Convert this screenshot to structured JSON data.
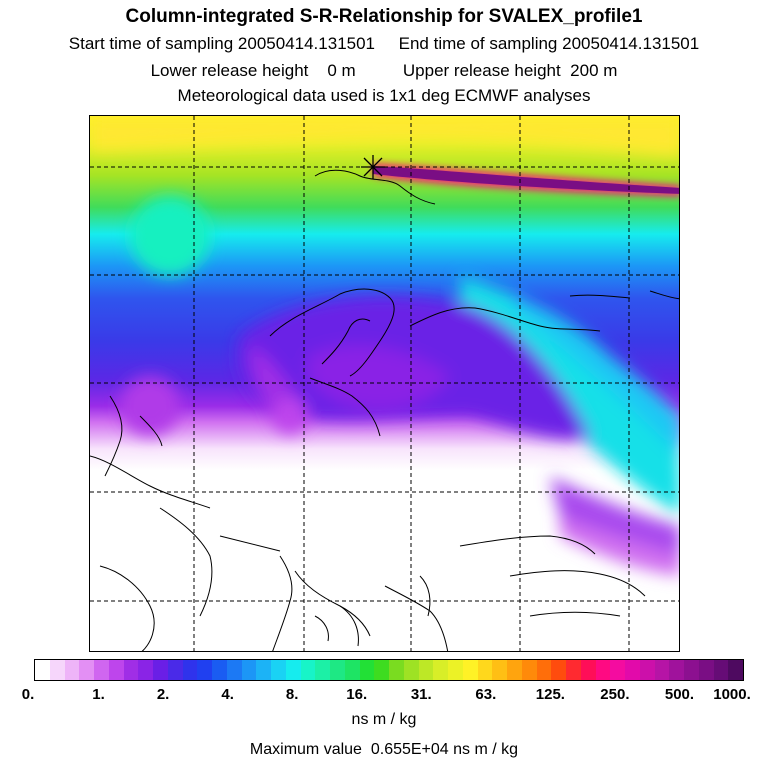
{
  "header": {
    "title": "Column-integrated S-R-Relationship for SVALEX_profile1",
    "start_label": "Start time of sampling",
    "start_value": "20050414.131501",
    "end_label": "End time of sampling",
    "end_value": "20050414.131501",
    "lower_label": "Lower release height",
    "lower_value": "0 m",
    "upper_label": "Upper release height",
    "upper_value": "200 m",
    "met_text": "Meteorological data used is 1x1 deg ECMWF analyses"
  },
  "colorbar": {
    "ticks": [
      "0.",
      "1.",
      "2.",
      "4.",
      "8.",
      "16.",
      "31.",
      "63.",
      "125.",
      "250.",
      "500.",
      "1000."
    ],
    "colors": [
      "#ffffff",
      "#f6d6fb",
      "#eeb4f8",
      "#e38ff4",
      "#d066f0",
      "#be45ec",
      "#a02ee6",
      "#8a24e6",
      "#6a1fe6",
      "#4a2ae8",
      "#2f33ec",
      "#2040f0",
      "#1a5cf2",
      "#1c79f4",
      "#1c96f6",
      "#1cb3f6",
      "#1ad2f4",
      "#16ecee",
      "#18f4c8",
      "#1cf0a6",
      "#1ee884",
      "#1ee464",
      "#22e036",
      "#3edc20",
      "#7adc20",
      "#9ee224",
      "#bde826",
      "#d8ee28",
      "#ecf226",
      "#fff226",
      "#ffd81c",
      "#ffbf14",
      "#ffa40e",
      "#ff8a0a",
      "#ff6e0a",
      "#ff4c0e",
      "#ff2a30",
      "#ff0e58",
      "#ff0a82",
      "#f40ca0",
      "#e20aaa",
      "#cc10aa",
      "#b614a6",
      "#a0129c",
      "#8c1090",
      "#7a0e84",
      "#660c76",
      "#4e0a60"
    ],
    "unit": "ns m / kg"
  },
  "footer": {
    "label": "Maximum value",
    "value": "0.655E+04",
    "unit": "ns m / kg"
  }
}
